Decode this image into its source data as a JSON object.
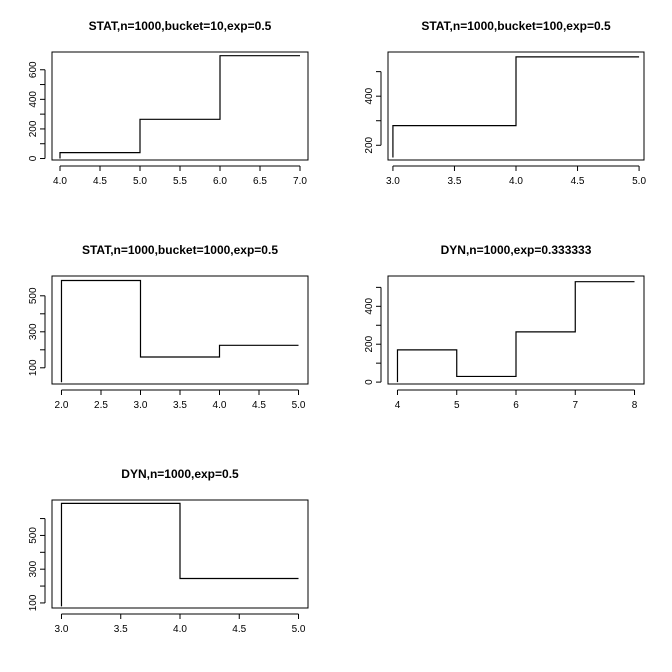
{
  "colors": {
    "line": "#000000",
    "background": "#ffffff"
  },
  "chart_data": [
    {
      "type": "line",
      "style": "step",
      "title": "STAT,n=1000,bucket=10,exp=0.5",
      "xlim": [
        3.9,
        7.1
      ],
      "ylim": [
        -10,
        720
      ],
      "xticks": [
        4.0,
        4.5,
        5.0,
        5.5,
        6.0,
        6.5,
        7.0
      ],
      "xtick_labels": [
        "4.0",
        "4.5",
        "5.0",
        "5.5",
        "6.0",
        "6.5",
        "7.0"
      ],
      "yticks": [
        0,
        100,
        200,
        300,
        400,
        500,
        600
      ],
      "ytick_labels": [
        "0",
        "",
        "200",
        "",
        "400",
        "",
        "600"
      ],
      "x": [
        4,
        5,
        6,
        7
      ],
      "y": [
        40,
        265,
        695,
        695
      ],
      "drop_start_to": 0
    },
    {
      "type": "line",
      "style": "step",
      "title": "STAT,n=1000,bucket=100,exp=0.5",
      "xlim": [
        2.96,
        5.04
      ],
      "ylim": [
        140,
        580
      ],
      "xticks": [
        3.0,
        3.5,
        4.0,
        4.5,
        5.0
      ],
      "xtick_labels": [
        "3.0",
        "3.5",
        "4.0",
        "4.5",
        "5.0"
      ],
      "yticks": [
        200,
        300,
        400,
        500
      ],
      "ytick_labels": [
        "200",
        "",
        "400",
        ""
      ],
      "x": [
        3,
        4,
        5
      ],
      "y": [
        280,
        560,
        560
      ],
      "drop_start_to": 150
    },
    {
      "type": "line",
      "style": "step",
      "title": "STAT,n=1000,bucket=1000,exp=0.5",
      "xlim": [
        1.88,
        5.12
      ],
      "ylim": [
        10,
        610
      ],
      "xticks": [
        2.0,
        2.5,
        3.0,
        3.5,
        4.0,
        4.5,
        5.0
      ],
      "xtick_labels": [
        "2.0",
        "2.5",
        "3.0",
        "3.5",
        "4.0",
        "4.5",
        "5.0"
      ],
      "yticks": [
        100,
        200,
        300,
        400,
        500
      ],
      "ytick_labels": [
        "100",
        "",
        "300",
        "",
        "500"
      ],
      "x": [
        2,
        3,
        4,
        5
      ],
      "y": [
        585,
        160,
        225,
        225
      ],
      "drop_start_to": 20
    },
    {
      "type": "line",
      "style": "step",
      "title": "DYN,n=1000,exp=0.333333",
      "xlim": [
        3.84,
        8.16
      ],
      "ylim": [
        -10,
        560
      ],
      "xticks": [
        4,
        5,
        6,
        7,
        8
      ],
      "xtick_labels": [
        "4",
        "5",
        "6",
        "7",
        "8"
      ],
      "yticks": [
        0,
        100,
        200,
        300,
        400,
        500
      ],
      "ytick_labels": [
        "0",
        "",
        "200",
        "",
        "400",
        ""
      ],
      "x": [
        4,
        5,
        6,
        7,
        8
      ],
      "y": [
        170,
        30,
        265,
        530,
        530
      ],
      "drop_start_to": 0
    },
    {
      "type": "line",
      "style": "step",
      "title": "DYN,n=1000,exp=0.5",
      "xlim": [
        2.92,
        5.08
      ],
      "ylim": [
        70,
        710
      ],
      "xticks": [
        3.0,
        3.5,
        4.0,
        4.5,
        5.0
      ],
      "xtick_labels": [
        "3.0",
        "3.5",
        "4.0",
        "4.5",
        "5.0"
      ],
      "yticks": [
        100,
        200,
        300,
        400,
        500,
        600
      ],
      "ytick_labels": [
        "100",
        "",
        "300",
        "",
        "500",
        ""
      ],
      "x": [
        3,
        4,
        5
      ],
      "y": [
        690,
        245,
        245
      ],
      "drop_start_to": 80
    }
  ]
}
